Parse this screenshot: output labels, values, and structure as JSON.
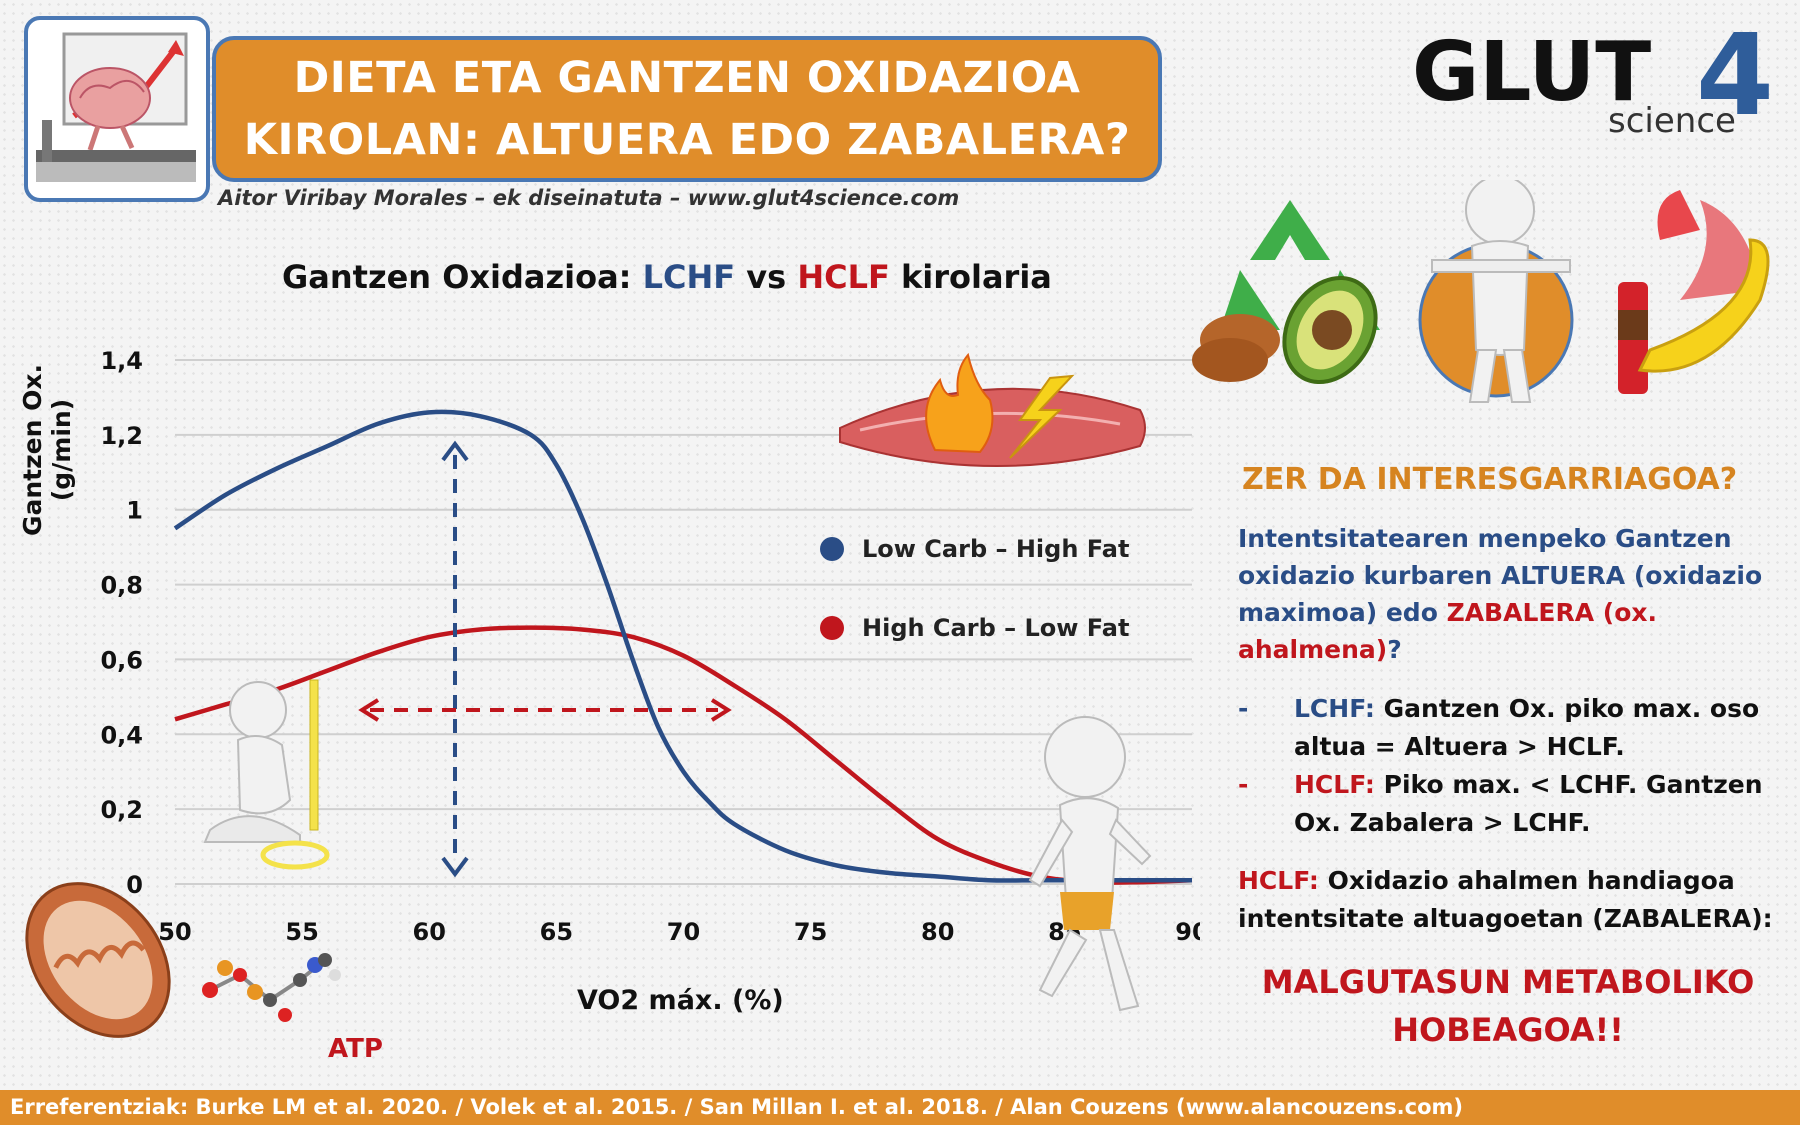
{
  "header": {
    "title_line1": "DIETA ETA GANTZEN OXIDAZIOA",
    "title_line2": "KIROLAN: ALTUERA EDO ZABALERA?",
    "byline": "Aitor Viribay Morales – ek diseinatuta – www.glut4science.com"
  },
  "logo": {
    "main": "GLUT",
    "number": "4",
    "sub": "science"
  },
  "chart_title": {
    "prefix": "Gantzen Oxidazioa: ",
    "lchf": "LCHF",
    "vs": " vs ",
    "hclf": "HCLF",
    "suffix": " kirolaria"
  },
  "chart_data": {
    "type": "line",
    "title": "Gantzen Oxidazioa: LCHF vs HCLF kirolaria",
    "xlabel": "VO2 máx. (%)",
    "ylabel": "Gantzen Ox. (g/min)",
    "xlim": [
      50,
      90
    ],
    "ylim": [
      0,
      1.4
    ],
    "x_ticks": [
      "50",
      "55",
      "60",
      "65",
      "70",
      "75",
      "80",
      "85",
      "90"
    ],
    "y_ticks": [
      "0",
      "0,2",
      "0,4",
      "0,6",
      "0,8",
      "1",
      "1,2",
      "1,4"
    ],
    "grid": true,
    "legend_position": "right",
    "series": [
      {
        "name": "Low Carb – High Fat",
        "color": "#2a4d86",
        "x": [
          50,
          52,
          54,
          56,
          58,
          60,
          62,
          64,
          65,
          66,
          67,
          68,
          69,
          70,
          71,
          72,
          74,
          76,
          78,
          80,
          82,
          84,
          86,
          88,
          90
        ],
        "y": [
          0.95,
          1.04,
          1.11,
          1.17,
          1.23,
          1.26,
          1.25,
          1.2,
          1.12,
          0.98,
          0.8,
          0.6,
          0.42,
          0.3,
          0.22,
          0.16,
          0.09,
          0.05,
          0.03,
          0.02,
          0.01,
          0.01,
          0.01,
          0.01,
          0.01
        ]
      },
      {
        "name": "High Carb – Low Fat",
        "color": "#c0161d",
        "x": [
          50,
          52,
          54,
          56,
          58,
          60,
          62,
          64,
          66,
          68,
          70,
          72,
          74,
          76,
          78,
          80,
          82,
          84,
          86,
          88,
          90
        ],
        "y": [
          0.44,
          0.48,
          0.52,
          0.57,
          0.62,
          0.66,
          0.68,
          0.685,
          0.68,
          0.66,
          0.61,
          0.53,
          0.44,
          0.33,
          0.22,
          0.12,
          0.06,
          0.02,
          0.005,
          0.005,
          0.01
        ]
      }
    ],
    "annotations": [
      "ATP"
    ]
  },
  "right": {
    "question": "ZER DA INTERESGARRIAGOA?",
    "body_blue1": "Intentsitatearen menpeko Gantzen oxidazio kurbaren ALTUERA (oxidazio maximoa) edo ",
    "body_red": "ZABALERA (ox. ahalmena)",
    "body_blue2": "?",
    "bullet1_label": "LCHF:",
    "bullet1_text": " Gantzen Ox. piko max. oso altua = Altuera > HCLF.",
    "bullet2_label": "HCLF:",
    "bullet2_text": " Piko max. < LCHF. Gantzen Ox. Zabalera > LCHF.",
    "dash": "-",
    "note_label": "HCLF:",
    "note_text": " Oxidazio ahalmen handiagoa intentsitate altuagoetan (ZABALERA):",
    "conclusion_line1": "MALGUTASUN METABOLIKO",
    "conclusion_line2": "HOBEAGOA!!"
  },
  "footer": "Erreferentziak: Burke LM et al. 2020. / Volek et al. 2015. / San Millan I. et al. 2018. / Alan Couzens (www.alancouzens.com)"
}
